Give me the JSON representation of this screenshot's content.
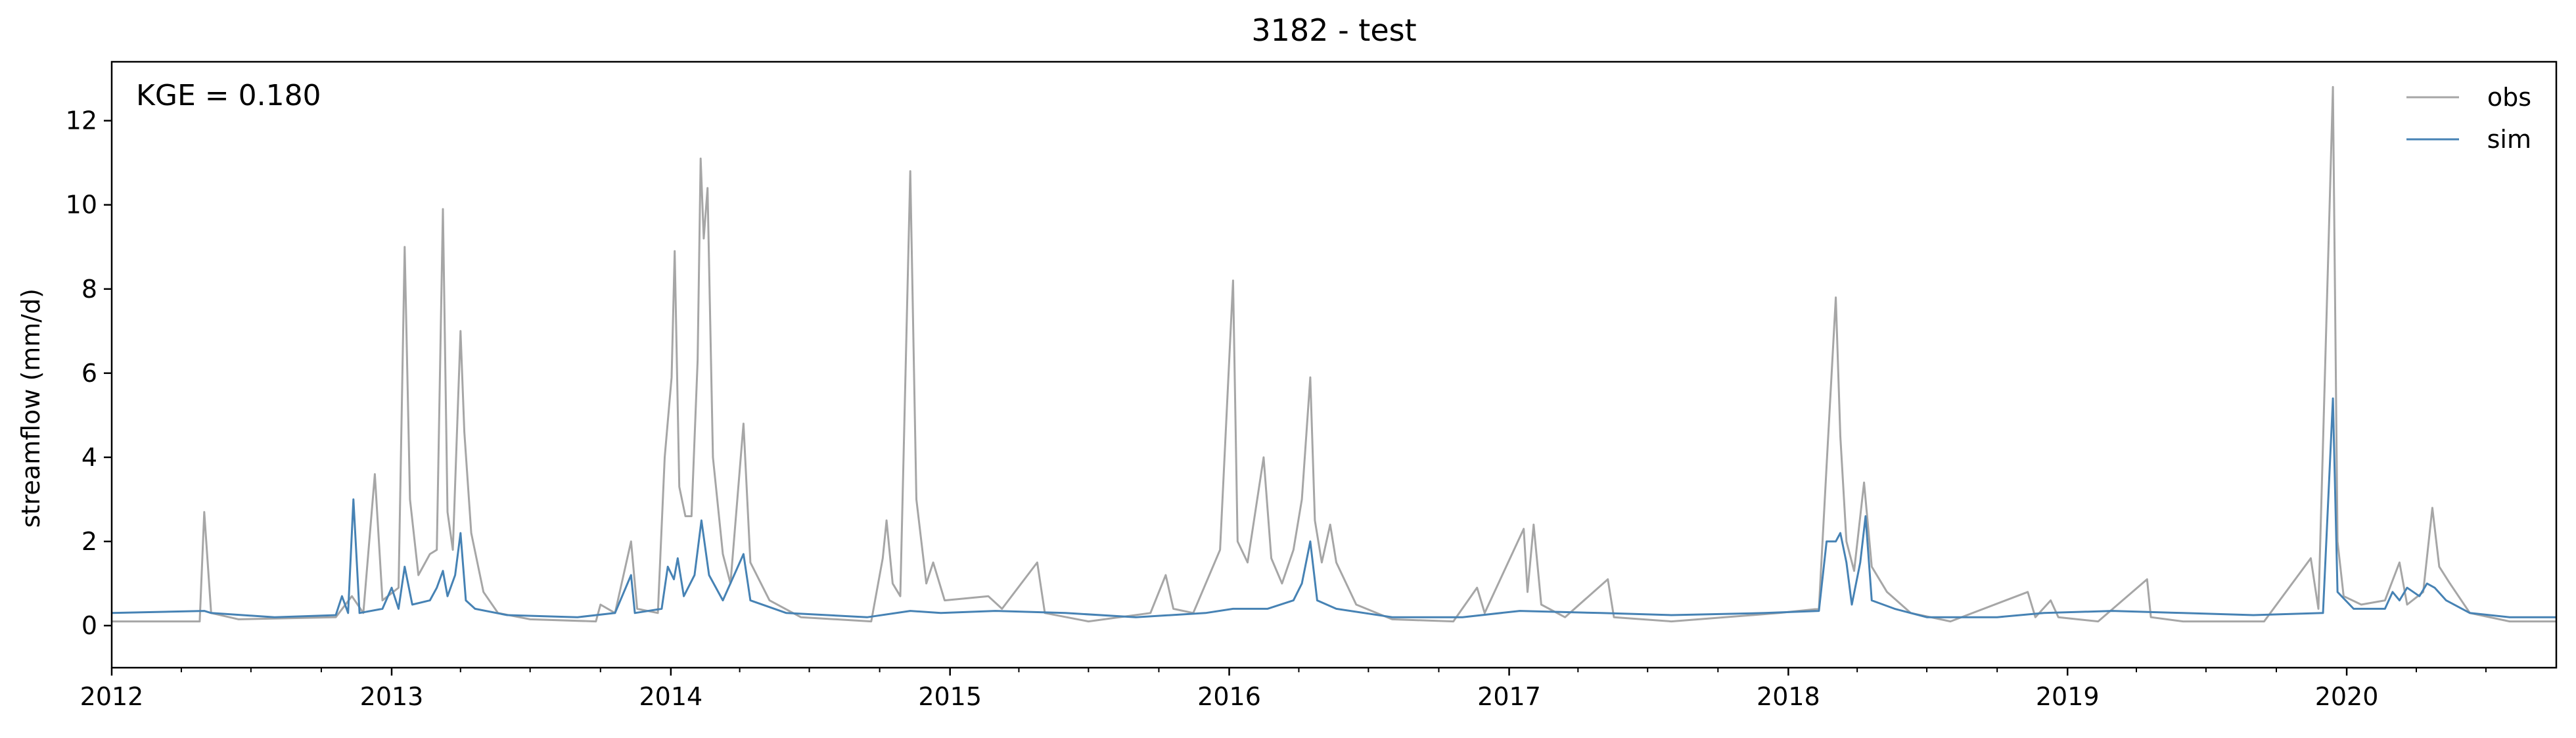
{
  "chart_data": {
    "type": "line",
    "title": "3182 - test",
    "xlabel": "",
    "ylabel": "streamflow (mm/d)",
    "xlim": [
      "2012-01-01",
      "2020-10-01"
    ],
    "ylim": [
      -1,
      13.4
    ],
    "x_ticks": [
      "2012",
      "2013",
      "2014",
      "2015",
      "2016",
      "2017",
      "2018",
      "2019",
      "2020"
    ],
    "y_ticks": [
      "0",
      "2",
      "4",
      "6",
      "8",
      "10",
      "12"
    ],
    "grid": false,
    "legend_position": "top-right",
    "annotation": "KGE = 0.180",
    "series": [
      {
        "name": "obs",
        "color": "#a6a6a6",
        "points": [
          [
            "2012-01-01",
            0.1
          ],
          [
            "2012-04-25",
            0.1
          ],
          [
            "2012-05-01",
            2.7
          ],
          [
            "2012-05-10",
            0.3
          ],
          [
            "2012-06-15",
            0.15
          ],
          [
            "2012-10-20",
            0.2
          ],
          [
            "2012-11-10",
            0.7
          ],
          [
            "2012-11-25",
            0.3
          ],
          [
            "2012-12-10",
            3.6
          ],
          [
            "2012-12-20",
            0.6
          ],
          [
            "2013-01-10",
            0.9
          ],
          [
            "2013-01-18",
            9.0
          ],
          [
            "2013-01-25",
            3.0
          ],
          [
            "2013-02-05",
            1.2
          ],
          [
            "2013-02-20",
            1.7
          ],
          [
            "2013-03-01",
            1.8
          ],
          [
            "2013-03-09",
            9.9
          ],
          [
            "2013-03-15",
            2.7
          ],
          [
            "2013-03-22",
            1.8
          ],
          [
            "2013-04-01",
            7.0
          ],
          [
            "2013-04-06",
            4.6
          ],
          [
            "2013-04-15",
            2.2
          ],
          [
            "2013-05-01",
            0.8
          ],
          [
            "2013-05-20",
            0.3
          ],
          [
            "2013-07-01",
            0.15
          ],
          [
            "2013-09-25",
            0.1
          ],
          [
            "2013-10-01",
            0.5
          ],
          [
            "2013-10-20",
            0.3
          ],
          [
            "2013-11-10",
            2.0
          ],
          [
            "2013-11-18",
            0.4
          ],
          [
            "2013-12-15",
            0.3
          ],
          [
            "2013-12-24",
            4.0
          ],
          [
            "2014-01-02",
            5.9
          ],
          [
            "2014-01-06",
            8.9
          ],
          [
            "2014-01-12",
            3.3
          ],
          [
            "2014-01-20",
            2.6
          ],
          [
            "2014-01-28",
            2.6
          ],
          [
            "2014-02-05",
            6.3
          ],
          [
            "2014-02-09",
            11.1
          ],
          [
            "2014-02-13",
            9.2
          ],
          [
            "2014-02-18",
            10.4
          ],
          [
            "2014-02-25",
            4.0
          ],
          [
            "2014-03-10",
            1.7
          ],
          [
            "2014-03-20",
            1.0
          ],
          [
            "2014-04-06",
            4.8
          ],
          [
            "2014-04-15",
            1.5
          ],
          [
            "2014-05-10",
            0.6
          ],
          [
            "2014-06-20",
            0.2
          ],
          [
            "2014-09-20",
            0.1
          ],
          [
            "2014-10-05",
            1.6
          ],
          [
            "2014-10-10",
            2.5
          ],
          [
            "2014-10-18",
            1.0
          ],
          [
            "2014-10-28",
            0.7
          ],
          [
            "2014-11-10",
            10.8
          ],
          [
            "2014-11-18",
            3.0
          ],
          [
            "2014-12-01",
            1.0
          ],
          [
            "2014-12-10",
            1.5
          ],
          [
            "2014-12-25",
            0.6
          ],
          [
            "2015-02-20",
            0.7
          ],
          [
            "2015-03-10",
            0.4
          ],
          [
            "2015-04-25",
            1.5
          ],
          [
            "2015-05-05",
            0.3
          ],
          [
            "2015-07-01",
            0.1
          ],
          [
            "2015-09-20",
            0.3
          ],
          [
            "2015-10-10",
            1.2
          ],
          [
            "2015-10-20",
            0.4
          ],
          [
            "2015-11-15",
            0.3
          ],
          [
            "2015-12-20",
            1.8
          ],
          [
            "2016-01-06",
            8.2
          ],
          [
            "2016-01-12",
            2.0
          ],
          [
            "2016-01-25",
            1.5
          ],
          [
            "2016-02-15",
            4.0
          ],
          [
            "2016-02-25",
            1.6
          ],
          [
            "2016-03-10",
            1.0
          ],
          [
            "2016-03-25",
            1.8
          ],
          [
            "2016-04-05",
            3.0
          ],
          [
            "2016-04-16",
            5.9
          ],
          [
            "2016-04-22",
            2.5
          ],
          [
            "2016-05-01",
            1.5
          ],
          [
            "2016-05-12",
            2.4
          ],
          [
            "2016-05-20",
            1.5
          ],
          [
            "2016-06-15",
            0.5
          ],
          [
            "2016-08-01",
            0.15
          ],
          [
            "2016-10-20",
            0.1
          ],
          [
            "2016-11-20",
            0.9
          ],
          [
            "2016-11-30",
            0.3
          ],
          [
            "2017-01-20",
            2.3
          ],
          [
            "2017-01-25",
            0.8
          ],
          [
            "2017-02-02",
            2.4
          ],
          [
            "2017-02-12",
            0.5
          ],
          [
            "2017-03-15",
            0.2
          ],
          [
            "2017-05-10",
            1.1
          ],
          [
            "2017-05-18",
            0.2
          ],
          [
            "2017-08-01",
            0.1
          ],
          [
            "2017-12-20",
            0.3
          ],
          [
            "2018-02-10",
            0.4
          ],
          [
            "2018-02-20",
            3.8
          ],
          [
            "2018-03-04",
            7.8
          ],
          [
            "2018-03-10",
            4.5
          ],
          [
            "2018-03-18",
            2.0
          ],
          [
            "2018-03-28",
            1.3
          ],
          [
            "2018-04-10",
            3.4
          ],
          [
            "2018-04-20",
            1.4
          ],
          [
            "2018-05-10",
            0.8
          ],
          [
            "2018-06-10",
            0.3
          ],
          [
            "2018-08-01",
            0.1
          ],
          [
            "2018-11-10",
            0.8
          ],
          [
            "2018-11-20",
            0.2
          ],
          [
            "2018-12-10",
            0.6
          ],
          [
            "2018-12-20",
            0.2
          ],
          [
            "2019-02-10",
            0.1
          ],
          [
            "2019-04-15",
            1.1
          ],
          [
            "2019-04-20",
            0.2
          ],
          [
            "2019-06-01",
            0.1
          ],
          [
            "2019-09-15",
            0.1
          ],
          [
            "2019-11-15",
            1.6
          ],
          [
            "2019-11-25",
            0.4
          ],
          [
            "2019-12-14",
            12.8
          ],
          [
            "2019-12-20",
            2.0
          ],
          [
            "2019-12-28",
            0.7
          ],
          [
            "2020-01-20",
            0.5
          ],
          [
            "2020-02-20",
            0.6
          ],
          [
            "2020-03-10",
            1.5
          ],
          [
            "2020-03-20",
            0.5
          ],
          [
            "2020-04-10",
            0.8
          ],
          [
            "2020-04-22",
            2.8
          ],
          [
            "2020-05-01",
            1.4
          ],
          [
            "2020-05-15",
            1.0
          ],
          [
            "2020-06-10",
            0.3
          ],
          [
            "2020-08-01",
            0.1
          ],
          [
            "2020-10-01",
            0.1
          ]
        ]
      },
      {
        "name": "sim",
        "color": "#4682b4",
        "points": [
          [
            "2012-01-01",
            0.3
          ],
          [
            "2012-05-01",
            0.35
          ],
          [
            "2012-05-10",
            0.3
          ],
          [
            "2012-08-01",
            0.2
          ],
          [
            "2012-10-20",
            0.25
          ],
          [
            "2012-10-28",
            0.7
          ],
          [
            "2012-11-05",
            0.3
          ],
          [
            "2012-11-12",
            3.0
          ],
          [
            "2012-11-20",
            0.3
          ],
          [
            "2012-12-20",
            0.4
          ],
          [
            "2013-01-01",
            0.9
          ],
          [
            "2013-01-10",
            0.4
          ],
          [
            "2013-01-18",
            1.4
          ],
          [
            "2013-01-28",
            0.5
          ],
          [
            "2013-02-20",
            0.6
          ],
          [
            "2013-03-01",
            0.9
          ],
          [
            "2013-03-09",
            1.3
          ],
          [
            "2013-03-15",
            0.7
          ],
          [
            "2013-03-25",
            1.2
          ],
          [
            "2013-04-01",
            2.2
          ],
          [
            "2013-04-08",
            0.6
          ],
          [
            "2013-04-20",
            0.4
          ],
          [
            "2013-06-01",
            0.25
          ],
          [
            "2013-09-01",
            0.2
          ],
          [
            "2013-10-20",
            0.3
          ],
          [
            "2013-11-10",
            1.2
          ],
          [
            "2013-11-15",
            0.3
          ],
          [
            "2013-12-20",
            0.4
          ],
          [
            "2013-12-28",
            1.4
          ],
          [
            "2014-01-05",
            1.1
          ],
          [
            "2014-01-10",
            1.6
          ],
          [
            "2014-01-18",
            0.7
          ],
          [
            "2014-02-01",
            1.2
          ],
          [
            "2014-02-10",
            2.5
          ],
          [
            "2014-02-20",
            1.2
          ],
          [
            "2014-03-10",
            0.6
          ],
          [
            "2014-04-06",
            1.7
          ],
          [
            "2014-04-15",
            0.6
          ],
          [
            "2014-06-01",
            0.3
          ],
          [
            "2014-09-15",
            0.2
          ],
          [
            "2014-11-10",
            0.35
          ],
          [
            "2014-12-20",
            0.3
          ],
          [
            "2015-03-01",
            0.35
          ],
          [
            "2015-06-01",
            0.3
          ],
          [
            "2015-09-01",
            0.2
          ],
          [
            "2015-12-01",
            0.3
          ],
          [
            "2016-01-06",
            0.4
          ],
          [
            "2016-02-20",
            0.4
          ],
          [
            "2016-03-25",
            0.6
          ],
          [
            "2016-04-05",
            1.0
          ],
          [
            "2016-04-16",
            2.0
          ],
          [
            "2016-04-25",
            0.6
          ],
          [
            "2016-05-20",
            0.4
          ],
          [
            "2016-08-01",
            0.2
          ],
          [
            "2016-11-01",
            0.2
          ],
          [
            "2017-01-15",
            0.35
          ],
          [
            "2017-05-01",
            0.3
          ],
          [
            "2017-08-01",
            0.25
          ],
          [
            "2017-12-01",
            0.3
          ],
          [
            "2018-02-10",
            0.35
          ],
          [
            "2018-02-20",
            2.0
          ],
          [
            "2018-03-04",
            2.0
          ],
          [
            "2018-03-10",
            2.2
          ],
          [
            "2018-03-18",
            1.5
          ],
          [
            "2018-03-25",
            0.5
          ],
          [
            "2018-04-05",
            1.5
          ],
          [
            "2018-04-12",
            2.6
          ],
          [
            "2018-04-20",
            0.6
          ],
          [
            "2018-05-20",
            0.4
          ],
          [
            "2018-07-01",
            0.2
          ],
          [
            "2018-10-01",
            0.2
          ],
          [
            "2018-12-01",
            0.3
          ],
          [
            "2019-03-01",
            0.35
          ],
          [
            "2019-06-01",
            0.3
          ],
          [
            "2019-09-01",
            0.25
          ],
          [
            "2019-12-01",
            0.3
          ],
          [
            "2019-12-14",
            5.4
          ],
          [
            "2019-12-20",
            0.8
          ],
          [
            "2020-01-10",
            0.4
          ],
          [
            "2020-02-20",
            0.4
          ],
          [
            "2020-03-01",
            0.8
          ],
          [
            "2020-03-10",
            0.6
          ],
          [
            "2020-03-20",
            0.9
          ],
          [
            "2020-04-05",
            0.7
          ],
          [
            "2020-04-15",
            1.0
          ],
          [
            "2020-04-25",
            0.9
          ],
          [
            "2020-05-10",
            0.6
          ],
          [
            "2020-06-10",
            0.3
          ],
          [
            "2020-08-01",
            0.2
          ],
          [
            "2020-10-01",
            0.2
          ]
        ]
      }
    ]
  }
}
